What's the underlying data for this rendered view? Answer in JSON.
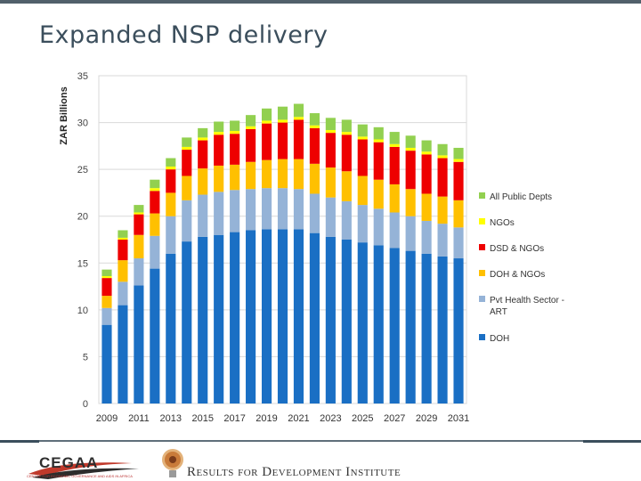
{
  "slide": {
    "title": "Expanded NSP delivery"
  },
  "footer": {
    "cegaa_name": "CEGAA",
    "cegaa_tagline": "CENTRE FOR ECONOMIC GOVERNANCE AND AIDS IN AFRICA",
    "r4d_name": "Results for Development Institute"
  },
  "chart_data": {
    "type": "bar",
    "stacked": true,
    "title": "",
    "xlabel": "",
    "ylabel": "ZAR Billions",
    "ylim": [
      0,
      35
    ],
    "yticks": [
      0,
      5,
      10,
      15,
      20,
      25,
      30,
      35
    ],
    "categories": [
      "2009",
      "2010",
      "2011",
      "2012",
      "2013",
      "2014",
      "2015",
      "2016",
      "2017",
      "2018",
      "2019",
      "2020",
      "2021",
      "2022",
      "2023",
      "2024",
      "2025",
      "2026",
      "2027",
      "2028",
      "2029",
      "2030",
      "2031"
    ],
    "xtick_labels": [
      "2009",
      "2011",
      "2013",
      "2015",
      "2017",
      "2019",
      "2021",
      "2023",
      "2025",
      "2027",
      "2029",
      "2031"
    ],
    "legend_position": "right",
    "series": [
      {
        "name": "DOH",
        "color": "#1a6fc4",
        "values": [
          8.4,
          10.5,
          12.6,
          14.4,
          16.0,
          17.3,
          17.8,
          18.0,
          18.3,
          18.5,
          18.6,
          18.6,
          18.6,
          18.2,
          17.8,
          17.5,
          17.2,
          16.9,
          16.6,
          16.3,
          16.0,
          15.7,
          15.5
        ]
      },
      {
        "name": "Pvt Health Sector - ART",
        "color": "#95b3d7",
        "values": [
          1.8,
          2.5,
          2.9,
          3.5,
          4.0,
          4.4,
          4.5,
          4.6,
          4.5,
          4.4,
          4.4,
          4.4,
          4.3,
          4.2,
          4.2,
          4.1,
          4.0,
          3.9,
          3.8,
          3.7,
          3.5,
          3.5,
          3.3
        ]
      },
      {
        "name": "DOH & NGOs",
        "color": "#ffc000",
        "values": [
          1.3,
          2.3,
          2.5,
          2.4,
          2.5,
          2.6,
          2.8,
          2.8,
          2.7,
          2.9,
          3.0,
          3.1,
          3.2,
          3.2,
          3.2,
          3.2,
          3.1,
          3.1,
          3.0,
          2.9,
          2.9,
          2.9,
          2.9
        ]
      },
      {
        "name": "DSD & NGOs",
        "color": "#ee0000",
        "values": [
          1.9,
          2.2,
          2.2,
          2.4,
          2.5,
          2.8,
          3.0,
          3.3,
          3.3,
          3.5,
          3.9,
          3.9,
          4.2,
          3.8,
          3.7,
          3.9,
          3.9,
          4.0,
          4.0,
          4.1,
          4.2,
          4.1,
          4.1
        ]
      },
      {
        "name": "NGOs",
        "color": "#ffff00",
        "values": [
          0.2,
          0.2,
          0.2,
          0.3,
          0.3,
          0.3,
          0.3,
          0.3,
          0.3,
          0.3,
          0.3,
          0.3,
          0.3,
          0.3,
          0.3,
          0.3,
          0.3,
          0.3,
          0.3,
          0.3,
          0.3,
          0.3,
          0.3
        ]
      },
      {
        "name": "All Public Depts",
        "color": "#92d050",
        "values": [
          0.7,
          0.8,
          0.8,
          0.9,
          0.9,
          1.0,
          1.0,
          1.1,
          1.1,
          1.2,
          1.3,
          1.4,
          1.4,
          1.3,
          1.3,
          1.3,
          1.3,
          1.3,
          1.3,
          1.3,
          1.2,
          1.2,
          1.2
        ]
      }
    ],
    "legend_order": [
      "All Public Depts",
      "NGOs",
      "DSD & NGOs",
      "DOH & NGOs",
      "Pvt Health Sector - ART",
      "DOH"
    ]
  }
}
